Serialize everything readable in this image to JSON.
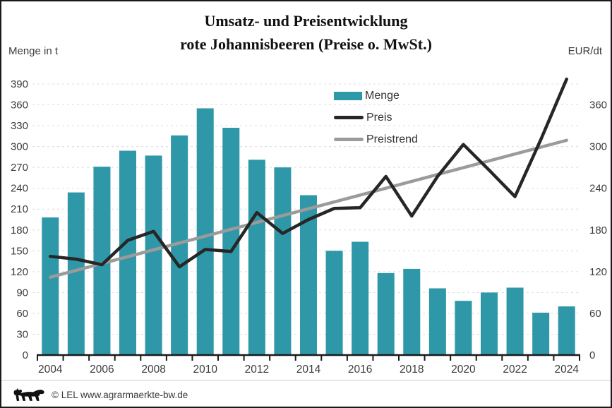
{
  "page": {
    "title_line1": "Umsatz- und Preisentwicklung",
    "title_line2": "rote Johannisbeeren (Preise o. MwSt.)",
    "left_axis_unit": "Menge in t",
    "right_axis_unit": "EUR/dt",
    "footer_text": "© LEL www.agrarmaerkte-bw.de"
  },
  "legend": {
    "items": [
      {
        "label": "Menge",
        "swatch": "bar",
        "color": "#2E97A8"
      },
      {
        "label": "Preis",
        "swatch": "line",
        "color": "#262626"
      },
      {
        "label": "Preistrend",
        "swatch": "line",
        "color": "#9B9B9B"
      }
    ]
  },
  "chart_data": {
    "type": "bar+line",
    "title": "Umsatz- und Preisentwicklung rote Johannisbeeren (Preise o. MwSt.)",
    "x": [
      2004,
      2005,
      2006,
      2007,
      2008,
      2009,
      2010,
      2011,
      2012,
      2013,
      2014,
      2015,
      2016,
      2017,
      2018,
      2019,
      2020,
      2021,
      2022,
      2023,
      2024
    ],
    "x_label_step": 2,
    "series": [
      {
        "name": "Menge",
        "type": "bar",
        "axis": "left",
        "unit": "t",
        "color": "#2E97A8",
        "values": [
          198,
          234,
          271,
          294,
          287,
          316,
          355,
          327,
          281,
          270,
          230,
          150,
          163,
          118,
          124,
          96,
          78,
          90,
          97,
          61,
          70
        ]
      },
      {
        "name": "Preis",
        "type": "line",
        "axis": "right",
        "unit": "EUR/dt",
        "color": "#262626",
        "values": [
          142,
          138,
          130,
          165,
          178,
          127,
          152,
          149,
          205,
          175,
          195,
          211,
          212,
          257,
          200,
          257,
          303,
          266,
          228,
          310,
          397
        ]
      },
      {
        "name": "Preistrend",
        "type": "trend-line",
        "axis": "right",
        "unit": "EUR/dt",
        "color": "#9B9B9B",
        "start_value": 112,
        "end_value": 309
      }
    ],
    "left_axis": {
      "label": "Menge in t",
      "min": 0,
      "max": 390,
      "tick_step": 30
    },
    "right_axis": {
      "label": "EUR/dt",
      "min": 0,
      "max": 390,
      "tick_step": 60,
      "max_label": 360
    },
    "grid": "horizontal dashed",
    "legend_position": "inside top-center"
  },
  "style": {
    "grid_color": "#dcdcdc",
    "axis_color": "#1a1a1a",
    "tick_label_color": "#3c3c3c"
  }
}
